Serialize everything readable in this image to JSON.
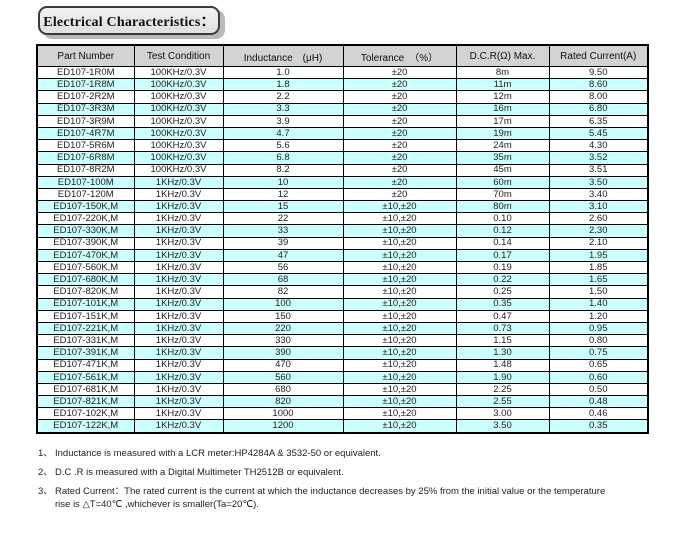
{
  "title": "Electrical Characteristics：",
  "colors": {
    "header_bg": "#d3d3d3",
    "alt_row_bg": "#ccffff",
    "border": "#000000"
  },
  "table": {
    "headers": [
      "Part Number",
      "Test Condition",
      "Inductance　(μH)",
      "Tolerance　（%）",
      "D.C.R(Ω) Max.",
      "Rated Current(A)"
    ],
    "rows": [
      [
        "ED107-1R0M",
        "100KHz/0.3V",
        "1.0",
        "±20",
        "8m",
        "9.50"
      ],
      [
        "ED107-1R8M",
        "100KHz/0.3V",
        "1.8",
        "±20",
        "11m",
        "8.60"
      ],
      [
        "ED107-2R2M",
        "100KHz/0.3V",
        "2.2",
        "±20",
        "12m",
        "8.00"
      ],
      [
        "ED107-3R3M",
        "100KHz/0.3V",
        "3.3",
        "±20",
        "16m",
        "6.80"
      ],
      [
        "ED107-3R9M",
        "100KHz/0.3V",
        "3.9",
        "±20",
        "17m",
        "6.35"
      ],
      [
        "ED107-4R7M",
        "100KHz/0.3V",
        "4.7",
        "±20",
        "19m",
        "5.45"
      ],
      [
        "ED107-5R6M",
        "100KHz/0.3V",
        "5.6",
        "±20",
        "24m",
        "4.30"
      ],
      [
        "ED107-6R8M",
        "100KHz/0.3V",
        "6.8",
        "±20",
        "35m",
        "3.52"
      ],
      [
        "ED107-8R2M",
        "100KHz/0.3V",
        "8.2",
        "±20",
        "45m",
        "3.51"
      ],
      [
        "ED107-100M",
        "1KHz/0.3V",
        "10",
        "±20",
        "60m",
        "3.50"
      ],
      [
        "ED107-120M",
        "1KHz/0.3V",
        "12",
        "±20",
        "70m",
        "3.40"
      ],
      [
        "ED107-150K,M",
        "1KHz/0.3V",
        "15",
        "±10,±20",
        "80m",
        "3.10"
      ],
      [
        "ED107-220K,M",
        "1KHz/0.3V",
        "22",
        "±10,±20",
        "0.10",
        "2.60"
      ],
      [
        "ED107-330K,M",
        "1KHz/0.3V",
        "33",
        "±10,±20",
        "0.12",
        "2.30"
      ],
      [
        "ED107-390K,M",
        "1KHz/0.3V",
        "39",
        "±10,±20",
        "0.14",
        "2.10"
      ],
      [
        "ED107-470K,M",
        "1KHz/0.3V",
        "47",
        "±10,±20",
        "0.17",
        "1.95"
      ],
      [
        "ED107-560K,M",
        "1KHz/0.3V",
        "56",
        "±10,±20",
        "0.19",
        "1.85"
      ],
      [
        "ED107-680K,M",
        "1KHz/0.3V",
        "68",
        "±10,±20",
        "0.22",
        "1.65"
      ],
      [
        "ED107-820K,M",
        "1KHz/0.3V",
        "82",
        "±10,±20",
        "0.25",
        "1.50"
      ],
      [
        "ED107-101K,M",
        "1KHz/0.3V",
        "100",
        "±10,±20",
        "0.35",
        "1.40"
      ],
      [
        "ED107-151K,M",
        "1KHz/0.3V",
        "150",
        "±10,±20",
        "0.47",
        "1.20"
      ],
      [
        "ED107-221K,M",
        "1KHz/0.3V",
        "220",
        "±10,±20",
        "0.73",
        "0.95"
      ],
      [
        "ED107-331K,M",
        "1KHz/0.3V",
        "330",
        "±10,±20",
        "1.15",
        "0.80"
      ],
      [
        "ED107-391K,M",
        "1KHz/0.3V",
        "390",
        "±10,±20",
        "1.30",
        "0.75"
      ],
      [
        "ED107-471K,M",
        "1KHz/0.3V",
        "470",
        "±10,±20",
        "1.48",
        "0.65"
      ],
      [
        "ED107-561K,M",
        "1KHz/0.3V",
        "560",
        "±10,±20",
        "1.90",
        "0.60"
      ],
      [
        "ED107-681K,M",
        "1KHz/0.3V",
        "680",
        "±10,±20",
        "2.25",
        "0.50"
      ],
      [
        "ED107-821K,M",
        "1KHz/0.3V",
        "820",
        "±10,±20",
        "2.55",
        "0.48"
      ],
      [
        "ED107-102K,M",
        "1KHz/0.3V",
        "1000",
        "±10,±20",
        "3.00",
        "0.46"
      ],
      [
        "ED107-122K,M",
        "1KHz/0.3V",
        "1200",
        "±10,±20",
        "3.50",
        "0.35"
      ]
    ]
  },
  "notes": [
    {
      "marker": "1、",
      "text": "Inductance is measured with a LCR meter:HP4284A & 3532-50 or equivalent."
    },
    {
      "marker": "2、",
      "text": "D.C .R is measured with a Digital Multimeter TH2512B or equivalent."
    },
    {
      "marker": "3、",
      "text": "Rated Current：The rated current is the current at which the inductance decreases by 25% from the initial value or the temperature\nrise is △T=40℃ ,whichever is smaller(Ta=20℃)."
    }
  ]
}
